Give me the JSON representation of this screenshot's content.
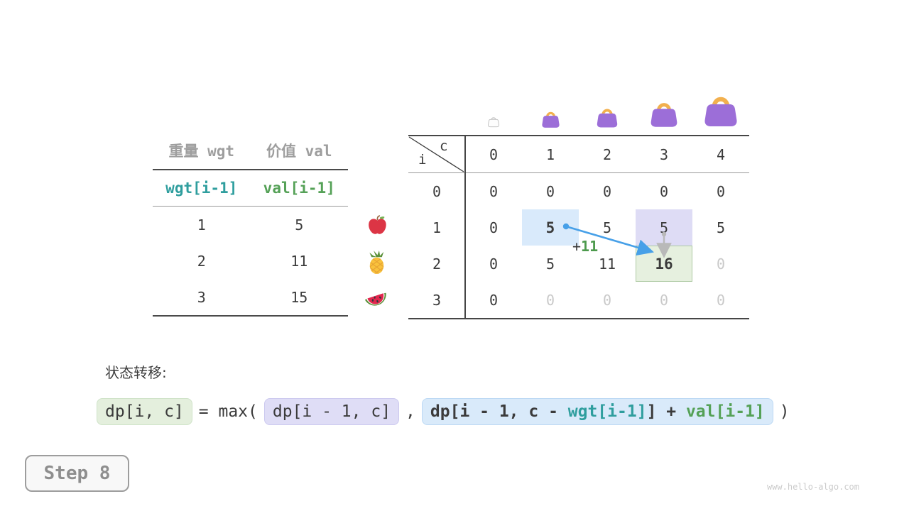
{
  "weights_table": {
    "headers": [
      "重量 wgt",
      "价值 val"
    ],
    "index_row": [
      "wgt[i-1]",
      "val[i-1]"
    ],
    "rows": [
      [
        "1",
        "5"
      ],
      [
        "2",
        "11"
      ],
      [
        "3",
        "15"
      ]
    ]
  },
  "dp_table": {
    "corner": {
      "top": "c",
      "left": "i"
    },
    "col_headers": [
      "0",
      "1",
      "2",
      "3",
      "4"
    ],
    "rows": [
      {
        "label": "0",
        "cells": [
          {
            "v": "0"
          },
          {
            "v": "0"
          },
          {
            "v": "0"
          },
          {
            "v": "0"
          },
          {
            "v": "0"
          }
        ]
      },
      {
        "label": "1",
        "cells": [
          {
            "v": "0"
          },
          {
            "v": "5",
            "bold": true,
            "hl": "blue"
          },
          {
            "v": "5"
          },
          {
            "v": "5",
            "hl": "lavender"
          },
          {
            "v": "5"
          }
        ]
      },
      {
        "label": "2",
        "cells": [
          {
            "v": "0"
          },
          {
            "v": "5"
          },
          {
            "v": "11"
          },
          {
            "v": "16",
            "bold": true,
            "hl": "green"
          },
          {
            "v": "0",
            "dim": true
          }
        ]
      },
      {
        "label": "3",
        "cells": [
          {
            "v": "0"
          },
          {
            "v": "0",
            "dim": true
          },
          {
            "v": "0",
            "dim": true
          },
          {
            "v": "0",
            "dim": true
          },
          {
            "v": "0",
            "dim": true
          }
        ]
      }
    ],
    "capacity_icons": [
      "handbag-empty",
      "handbag-xs",
      "handbag-small",
      "handbag-medium",
      "handbag-large"
    ],
    "item_icons": [
      "apple",
      "pineapple",
      "watermelon"
    ]
  },
  "annotation": {
    "plus": "+",
    "value": "11"
  },
  "transition": {
    "label": "状态转移:",
    "lhs": "dp[i, c]",
    "eq": "= max(",
    "option1": "dp[i - 1, c]",
    "separator": ",",
    "option2_parts": [
      {
        "text": "dp[i - 1, c - ",
        "color": "dark"
      },
      {
        "text": "wgt[i-1]",
        "color": "teal"
      },
      {
        "text": "] + ",
        "color": "dark"
      },
      {
        "text": "val[i-1]",
        "color": "green"
      }
    ],
    "close": ")"
  },
  "step_badge": {
    "label": "Step 8"
  },
  "watermark": {
    "text": "www.hello-algo.com"
  },
  "colors": {
    "teal": "#2f9e9e",
    "green": "#55a157",
    "arrow_blue": "#47a0e8",
    "arrow_gray": "#b9b9b9",
    "highlight_blue": "#d9eafb",
    "highlight_lavender": "#dedcf5",
    "highlight_green": "#e6f0df",
    "bag_purple": "#9c6ed8",
    "bag_handle": "#f2b04e"
  }
}
